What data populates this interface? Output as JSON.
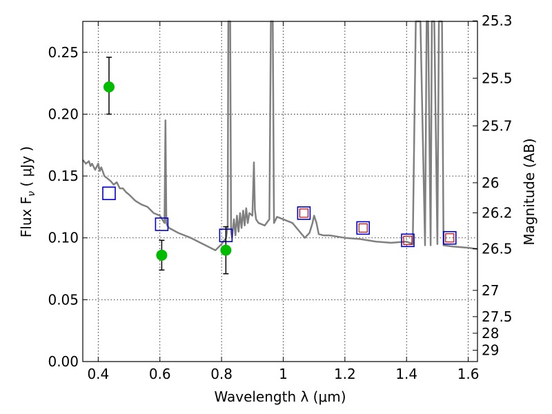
{
  "chart_data": {
    "type": "scatter",
    "title": "",
    "xlabel": "Wavelength  λ (μm)",
    "ylabel_left": "Flux  F",
    "ylabel_sub": "ν",
    "ylabel_unit": "  ( μJy )",
    "ylabel_right": "Magnitude (AB)",
    "xlim": [
      0.35,
      1.63
    ],
    "ylim": [
      0.0,
      0.275
    ],
    "grid": true,
    "x_ticks": [
      0.4,
      0.6,
      0.8,
      1.0,
      1.2,
      1.4,
      1.6
    ],
    "x_tick_labels": [
      "0.4",
      "0.6",
      "0.8",
      "1",
      "1.2",
      "1.4",
      "1.6"
    ],
    "y_ticks": [
      0.0,
      0.05,
      0.1,
      0.15,
      0.2,
      0.25
    ],
    "y_tick_labels": [
      "0.00",
      "0.05",
      "0.10",
      "0.15",
      "0.20",
      "0.25"
    ],
    "right_ticks": [
      {
        "label": "25.3",
        "mag": 25.3
      },
      {
        "label": "25.5",
        "mag": 25.5
      },
      {
        "label": "25.7",
        "mag": 25.7
      },
      {
        "label": "26",
        "mag": 26.0
      },
      {
        "label": "26.2",
        "mag": 26.2
      },
      {
        "label": "26.5",
        "mag": 26.5
      },
      {
        "label": "27",
        "mag": 27.0
      },
      {
        "label": "27.5",
        "mag": 27.5
      },
      {
        "label": "28",
        "mag": 28.0
      },
      {
        "label": "29",
        "mag": 29.0
      }
    ],
    "colors": {
      "spectrum": "#808080",
      "observed": "#00bb00",
      "model_box": "#0000cc",
      "model_inner": "#cc0000",
      "errorbar": "#000000"
    },
    "observed_points": [
      {
        "x": 0.435,
        "y": 0.222,
        "yerr_low": 0.2,
        "yerr_high": 0.246
      },
      {
        "x": 0.606,
        "y": 0.086,
        "yerr_low": 0.074,
        "yerr_high": 0.098
      },
      {
        "x": 0.814,
        "y": 0.09,
        "yerr_low": 0.071,
        "yerr_high": 0.109
      }
    ],
    "model_points": [
      {
        "x": 0.435,
        "y": 0.136,
        "inner": false
      },
      {
        "x": 0.606,
        "y": 0.111,
        "inner": false
      },
      {
        "x": 0.814,
        "y": 0.102,
        "inner": false
      },
      {
        "x": 1.067,
        "y": 0.12,
        "inner": true
      },
      {
        "x": 1.259,
        "y": 0.108,
        "inner": true
      },
      {
        "x": 1.404,
        "y": 0.098,
        "inner": true
      },
      {
        "x": 1.54,
        "y": 0.1,
        "inner": true
      }
    ],
    "spectrum": {
      "x": [
        0.35,
        0.36,
        0.37,
        0.375,
        0.38,
        0.39,
        0.4,
        0.405,
        0.41,
        0.42,
        0.43,
        0.44,
        0.45,
        0.46,
        0.47,
        0.48,
        0.49,
        0.5,
        0.52,
        0.54,
        0.56,
        0.58,
        0.6,
        0.615,
        0.618,
        0.621,
        0.624,
        0.63,
        0.66,
        0.7,
        0.74,
        0.78,
        0.8,
        0.815,
        0.82,
        0.822,
        0.825,
        0.828,
        0.831,
        0.834,
        0.84,
        0.845,
        0.85,
        0.855,
        0.86,
        0.865,
        0.87,
        0.875,
        0.88,
        0.885,
        0.89,
        0.9,
        0.905,
        0.908,
        0.912,
        0.92,
        0.94,
        0.955,
        0.96,
        0.963,
        0.966,
        0.97,
        0.98,
        1.0,
        1.03,
        1.05,
        1.07,
        1.085,
        1.095,
        1.1,
        1.108,
        1.115,
        1.13,
        1.15,
        1.2,
        1.25,
        1.3,
        1.35,
        1.4,
        1.42,
        1.43,
        1.435,
        1.44,
        1.445,
        1.46,
        1.465,
        1.47,
        1.478,
        1.482,
        1.486,
        1.49,
        1.5,
        1.505,
        1.51,
        1.515,
        1.52,
        1.55,
        1.6,
        1.63
      ],
      "y": [
        0.163,
        0.16,
        0.162,
        0.158,
        0.16,
        0.155,
        0.16,
        0.154,
        0.157,
        0.15,
        0.148,
        0.146,
        0.143,
        0.145,
        0.14,
        0.14,
        0.137,
        0.135,
        0.13,
        0.127,
        0.125,
        0.12,
        0.118,
        0.112,
        0.195,
        0.112,
        0.11,
        0.108,
        0.104,
        0.1,
        0.095,
        0.09,
        0.095,
        0.1,
        0.11,
        0.276,
        0.276,
        0.276,
        0.105,
        0.1,
        0.115,
        0.102,
        0.118,
        0.105,
        0.12,
        0.108,
        0.122,
        0.11,
        0.124,
        0.112,
        0.12,
        0.118,
        0.161,
        0.123,
        0.115,
        0.112,
        0.11,
        0.115,
        0.276,
        0.276,
        0.276,
        0.112,
        0.117,
        0.115,
        0.112,
        0.106,
        0.1,
        0.104,
        0.112,
        0.118,
        0.112,
        0.103,
        0.102,
        0.102,
        0.1,
        0.099,
        0.097,
        0.096,
        0.097,
        0.095,
        0.276,
        0.276,
        0.276,
        0.276,
        0.094,
        0.276,
        0.276,
        0.094,
        0.276,
        0.276,
        0.276,
        0.095,
        0.276,
        0.276,
        0.276,
        0.094,
        0.093,
        0.092,
        0.091
      ]
    }
  }
}
